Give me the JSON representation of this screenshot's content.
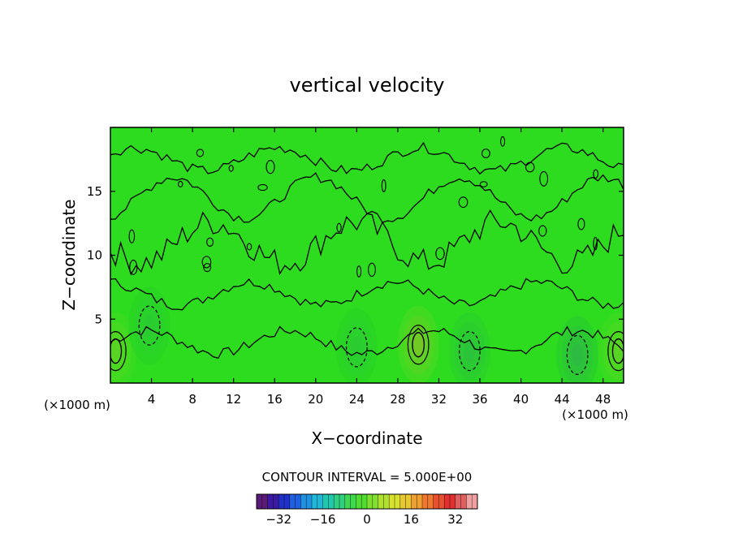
{
  "chart_data": {
    "type": "heatmap",
    "title": "vertical velocity",
    "xlabel": "X−coordinate",
    "ylabel": "Z−coordinate",
    "x_unit_left": "(×1000 m)",
    "x_unit_right": "(×1000 m)",
    "xlim": [
      0,
      50
    ],
    "ylim": [
      0,
      20
    ],
    "x_ticks": [
      4,
      8,
      12,
      16,
      20,
      24,
      28,
      32,
      36,
      40,
      44,
      48
    ],
    "x_tick_labels": [
      "4",
      "8",
      "12",
      "16",
      "20",
      "24",
      "28",
      "32",
      "36",
      "40",
      "44",
      "48"
    ],
    "y_ticks": [
      5,
      10,
      15
    ],
    "y_tick_labels": [
      "5",
      "10",
      "15"
    ],
    "contour_interval_label": "CONTOUR INTERVAL = 5.000E+00",
    "contour_interval": 5.0,
    "colorbar": {
      "range": [
        -40,
        40
      ],
      "ticks": [
        -32,
        -16,
        0,
        16,
        32
      ],
      "tick_labels": [
        "−32",
        "−16",
        "0",
        "16",
        "32"
      ]
    },
    "features": [
      {
        "x": 30.0,
        "z": 3.0,
        "value": 15,
        "kind": "updraft"
      },
      {
        "x": 49.5,
        "z": 2.5,
        "value": 10,
        "kind": "updraft"
      },
      {
        "x": 0.5,
        "z": 2.5,
        "value": 10,
        "kind": "updraft"
      },
      {
        "x": 45.5,
        "z": 2.2,
        "value": -8,
        "kind": "downdraft"
      },
      {
        "x": 35.0,
        "z": 2.5,
        "value": -6,
        "kind": "downdraft"
      },
      {
        "x": 3.8,
        "z": 4.5,
        "value": -4,
        "kind": "downdraft"
      },
      {
        "x": 24.0,
        "z": 2.8,
        "value": -4,
        "kind": "downdraft"
      }
    ]
  }
}
